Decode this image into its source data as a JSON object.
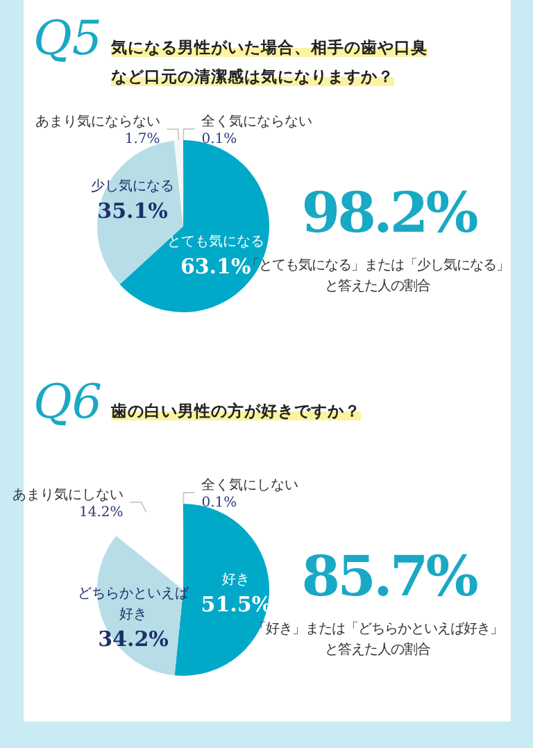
{
  "chart_data": [
    {
      "type": "pie",
      "title": "気になる男性がいた場合、相手の歯や口臭など口元の清潔感は気になりますか？",
      "annotations": [
        "Q5",
        "98.2%",
        "「とても気になる」または「少し気になる」",
        "と答えた人の割合"
      ],
      "categories": [
        "全く気にならない",
        "とても気になる",
        "少し気になる",
        "あまり気にならない"
      ],
      "values": [
        0.1,
        63.1,
        35.1,
        1.7
      ],
      "colors": [
        "#1d3a70",
        "#00a9c8",
        "#b7dde6",
        "#f4f6f7"
      ],
      "value_labels": [
        "0.1%",
        "63.1%",
        "35.1%",
        "1.7%"
      ]
    },
    {
      "type": "pie",
      "title": "歯の白い男性の方が好きですか？",
      "annotations": [
        "Q6",
        "85.7%",
        "「好き」または「どちらかといえば好き」",
        "と答えた人の割合"
      ],
      "categories": [
        "全く気にしない",
        "好き",
        "どちらかといえば好き",
        "あまり気にしない"
      ],
      "values": [
        0.1,
        51.5,
        34.2,
        14.2
      ],
      "colors": [
        "#1d3a70",
        "#00a9c8",
        "#b7dde6",
        "#ffffff"
      ],
      "value_labels": [
        "0.1%",
        "51.5%",
        "34.2%",
        "14.2%"
      ]
    }
  ]
}
